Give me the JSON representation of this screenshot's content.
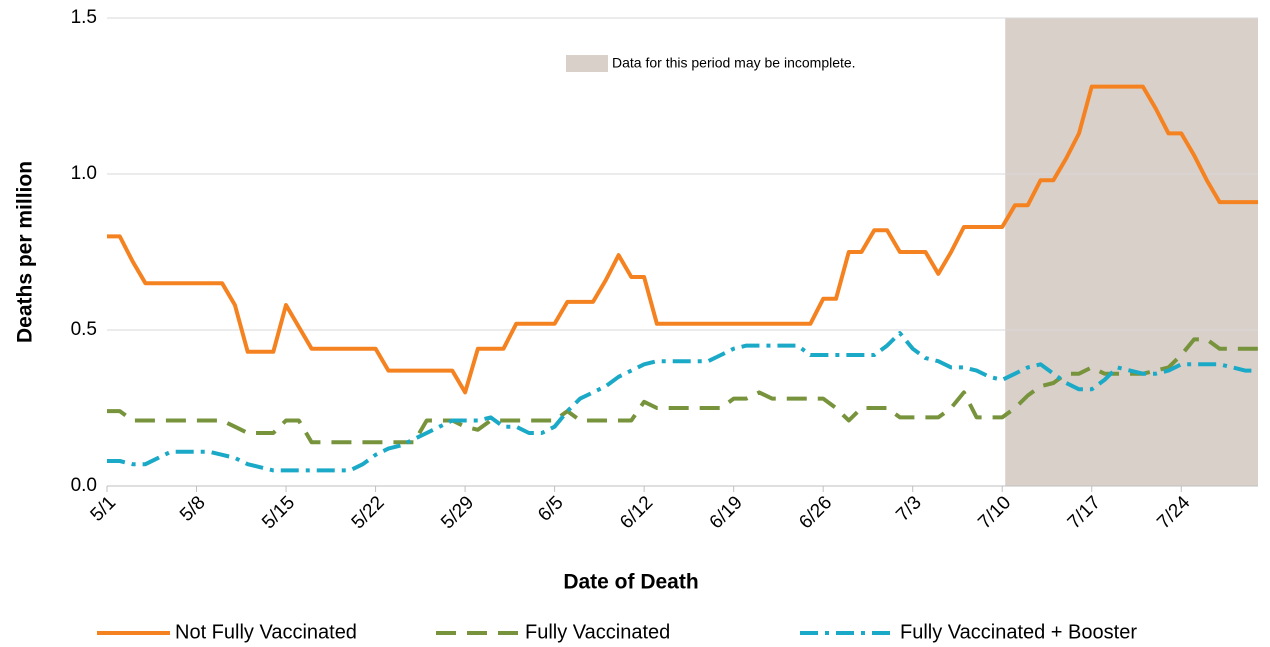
{
  "chart_data": {
    "type": "line",
    "x_label": "Date of Death",
    "y_label": "Deaths per million",
    "categories": [
      "5/1",
      null,
      null,
      null,
      null,
      null,
      null,
      "5/8",
      null,
      null,
      null,
      null,
      null,
      null,
      "5/15",
      null,
      null,
      null,
      null,
      null,
      null,
      "5/22",
      null,
      null,
      null,
      null,
      null,
      null,
      "5/29",
      null,
      null,
      null,
      null,
      null,
      null,
      "6/5",
      null,
      null,
      null,
      null,
      null,
      null,
      "6/12",
      null,
      null,
      null,
      null,
      null,
      null,
      "6/19",
      null,
      null,
      null,
      null,
      null,
      null,
      "6/26",
      null,
      null,
      null,
      null,
      null,
      null,
      "7/3",
      null,
      null,
      null,
      null,
      null,
      null,
      "7/10",
      null,
      null,
      null,
      null,
      null,
      null,
      "7/17",
      null,
      null,
      null,
      null,
      null,
      null,
      "7/24",
      null,
      null,
      null,
      null,
      null,
      null
    ],
    "series": [
      {
        "name": "Not Fully Vaccinated",
        "color": "#f58220",
        "dash": "solid",
        "values": [
          0.8,
          0.8,
          0.72,
          0.65,
          0.65,
          0.65,
          0.65,
          0.65,
          0.65,
          0.65,
          0.58,
          0.43,
          0.43,
          0.43,
          0.58,
          0.51,
          0.44,
          0.44,
          0.44,
          0.44,
          0.44,
          0.44,
          0.37,
          0.37,
          0.37,
          0.37,
          0.37,
          0.37,
          0.3,
          0.44,
          0.44,
          0.44,
          0.52,
          0.52,
          0.52,
          0.52,
          0.59,
          0.59,
          0.59,
          0.66,
          0.74,
          0.67,
          0.67,
          0.52,
          0.52,
          0.52,
          0.52,
          0.52,
          0.52,
          0.52,
          0.52,
          0.52,
          0.52,
          0.52,
          0.52,
          0.52,
          0.6,
          0.6,
          0.75,
          0.75,
          0.82,
          0.82,
          0.75,
          0.75,
          0.75,
          0.68,
          0.75,
          0.83,
          0.83,
          0.83,
          0.83,
          0.9,
          0.9,
          0.98,
          0.98,
          1.05,
          1.13,
          1.28,
          1.28,
          1.28,
          1.28,
          1.28,
          1.21,
          1.13,
          1.13,
          1.06,
          0.98,
          0.91,
          0.91,
          0.91,
          0.91
        ]
      },
      {
        "name": "Fully Vaccinated",
        "color": "#77933c",
        "dash": "dashed",
        "values": [
          0.24,
          0.24,
          0.21,
          0.21,
          0.21,
          0.21,
          0.21,
          0.21,
          0.21,
          0.21,
          0.19,
          0.17,
          0.17,
          0.17,
          0.21,
          0.21,
          0.14,
          0.14,
          0.14,
          0.14,
          0.14,
          0.14,
          0.14,
          0.14,
          0.14,
          0.21,
          0.21,
          0.21,
          0.19,
          0.18,
          0.21,
          0.21,
          0.21,
          0.21,
          0.21,
          0.21,
          0.24,
          0.21,
          0.21,
          0.21,
          0.21,
          0.21,
          0.27,
          0.25,
          0.25,
          0.25,
          0.25,
          0.25,
          0.25,
          0.28,
          0.28,
          0.3,
          0.28,
          0.28,
          0.28,
          0.28,
          0.28,
          0.25,
          0.21,
          0.25,
          0.25,
          0.25,
          0.22,
          0.22,
          0.22,
          0.22,
          0.25,
          0.3,
          0.22,
          0.22,
          0.22,
          0.25,
          0.29,
          0.32,
          0.33,
          0.36,
          0.36,
          0.38,
          0.36,
          0.36,
          0.36,
          0.36,
          0.37,
          0.38,
          0.42,
          0.47,
          0.47,
          0.44,
          0.44,
          0.44,
          0.44
        ]
      },
      {
        "name": "Fully Vaccinated + Booster",
        "color": "#1aa9c6",
        "dash": "dashdot",
        "values": [
          0.08,
          0.08,
          0.07,
          0.07,
          0.09,
          0.11,
          0.11,
          0.11,
          0.11,
          0.1,
          0.09,
          0.07,
          0.06,
          0.05,
          0.05,
          0.05,
          0.05,
          0.05,
          0.05,
          0.05,
          0.07,
          0.1,
          0.12,
          0.13,
          0.15,
          0.17,
          0.19,
          0.21,
          0.21,
          0.21,
          0.22,
          0.19,
          0.19,
          0.17,
          0.17,
          0.19,
          0.24,
          0.28,
          0.3,
          0.32,
          0.35,
          0.37,
          0.39,
          0.4,
          0.4,
          0.4,
          0.4,
          0.4,
          0.42,
          0.44,
          0.45,
          0.45,
          0.45,
          0.45,
          0.45,
          0.42,
          0.42,
          0.42,
          0.42,
          0.42,
          0.42,
          0.45,
          0.49,
          0.44,
          0.41,
          0.4,
          0.38,
          0.38,
          0.37,
          0.35,
          0.34,
          0.36,
          0.38,
          0.39,
          0.36,
          0.33,
          0.31,
          0.31,
          0.34,
          0.38,
          0.37,
          0.36,
          0.36,
          0.37,
          0.39,
          0.39,
          0.39,
          0.39,
          0.38,
          0.37,
          0.37
        ]
      }
    ],
    "ylim": [
      0,
      1.5
    ],
    "yticks": [
      {
        "value": 0,
        "label": "0.0"
      },
      0.5,
      {
        "value": 1,
        "label": "1.0"
      },
      1.5
    ],
    "grid": true,
    "legend": "bottom",
    "shaded_region": {
      "from": "7/10",
      "color": "#d9d0ca",
      "label": "Data for this period may be incomplete."
    }
  }
}
